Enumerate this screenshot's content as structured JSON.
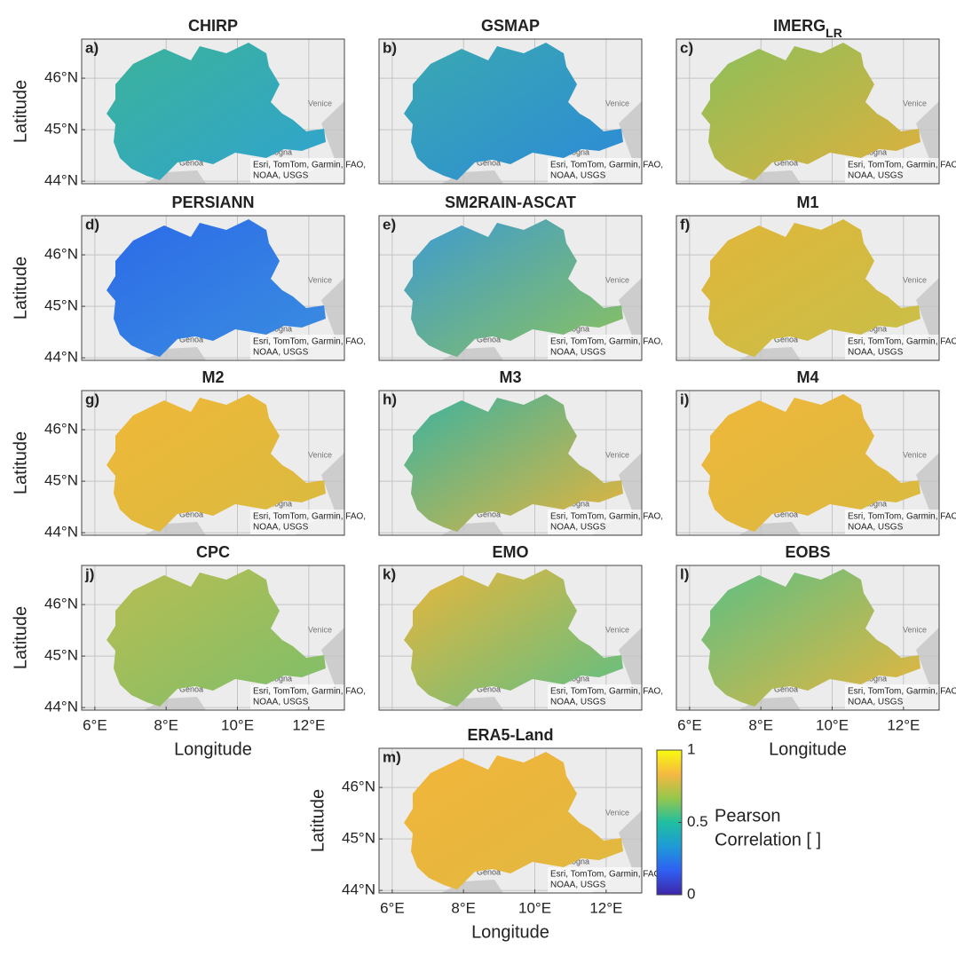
{
  "axes": {
    "xlim": [
      5.63,
      13.0
    ],
    "ylim": [
      43.95,
      46.76
    ],
    "xticks": [
      {
        "value": 6,
        "label": "6°E"
      },
      {
        "value": 8,
        "label": "8°E"
      },
      {
        "value": 10,
        "label": "10°E"
      },
      {
        "value": 12,
        "label": "12°E"
      }
    ],
    "yticks": [
      {
        "value": 44,
        "label": "44°N"
      },
      {
        "value": 45,
        "label": "45°N"
      },
      {
        "value": 46,
        "label": "46°N"
      }
    ],
    "xlabel": "Longitude",
    "ylabel": "Latitude",
    "grid": true
  },
  "places": {
    "venice": "Venice",
    "genoa": "Genoa",
    "bologna": "Bologna"
  },
  "attribution": [
    "Esri, TomTom, Garmin, FAO,",
    "NOAA, USGS"
  ],
  "panels": [
    {
      "letter": "a)",
      "title": "CHIRP",
      "colors": [
        "#3cb39a",
        "#2fa3cf"
      ]
    },
    {
      "letter": "b)",
      "title": "GSMAP",
      "colors": [
        "#3aa9b0",
        "#2c8ad8"
      ]
    },
    {
      "letter": "c)",
      "title": "IMERG",
      "subscript": "LR",
      "colors": [
        "#8cbf5a",
        "#e0b03c"
      ]
    },
    {
      "letter": "d)",
      "title": "PERSIANN",
      "colors": [
        "#2c6ae8",
        "#3a8ee0"
      ]
    },
    {
      "letter": "e)",
      "title": "SM2RAIN-ASCAT",
      "colors": [
        "#3d9bd0",
        "#8bc25e"
      ]
    },
    {
      "letter": "f)",
      "title": "M1",
      "colors": [
        "#e0b63a",
        "#c8bf48"
      ]
    },
    {
      "letter": "g)",
      "title": "M2",
      "colors": [
        "#f0b838",
        "#d8ba40"
      ]
    },
    {
      "letter": "h)",
      "title": "M3",
      "colors": [
        "#3ab3a0",
        "#e8b43a"
      ]
    },
    {
      "letter": "i)",
      "title": "M4",
      "colors": [
        "#f0b73a",
        "#d8ba40"
      ]
    },
    {
      "letter": "j)",
      "title": "CPC",
      "colors": [
        "#b8bd52",
        "#7dbf6a"
      ]
    },
    {
      "letter": "k)",
      "title": "EMO",
      "colors": [
        "#e8b63c",
        "#5cbf85"
      ]
    },
    {
      "letter": "l)",
      "title": "EOBS",
      "colors": [
        "#5cbf85",
        "#e8b63c"
      ]
    },
    {
      "letter": "m)",
      "title": "ERA5-Land",
      "colors": [
        "#f2b53a",
        "#e0b840"
      ]
    }
  ],
  "colorbar": {
    "lim": [
      0,
      1
    ],
    "ticks": [
      0,
      0.5,
      1
    ],
    "label": [
      "Pearson",
      "Correlation [ ]"
    ],
    "colormap": [
      "#3e26a8",
      "#2f5ff2",
      "#1e9bd7",
      "#1fbfa0",
      "#96c64c",
      "#f5b841",
      "#f9fb0e"
    ]
  }
}
